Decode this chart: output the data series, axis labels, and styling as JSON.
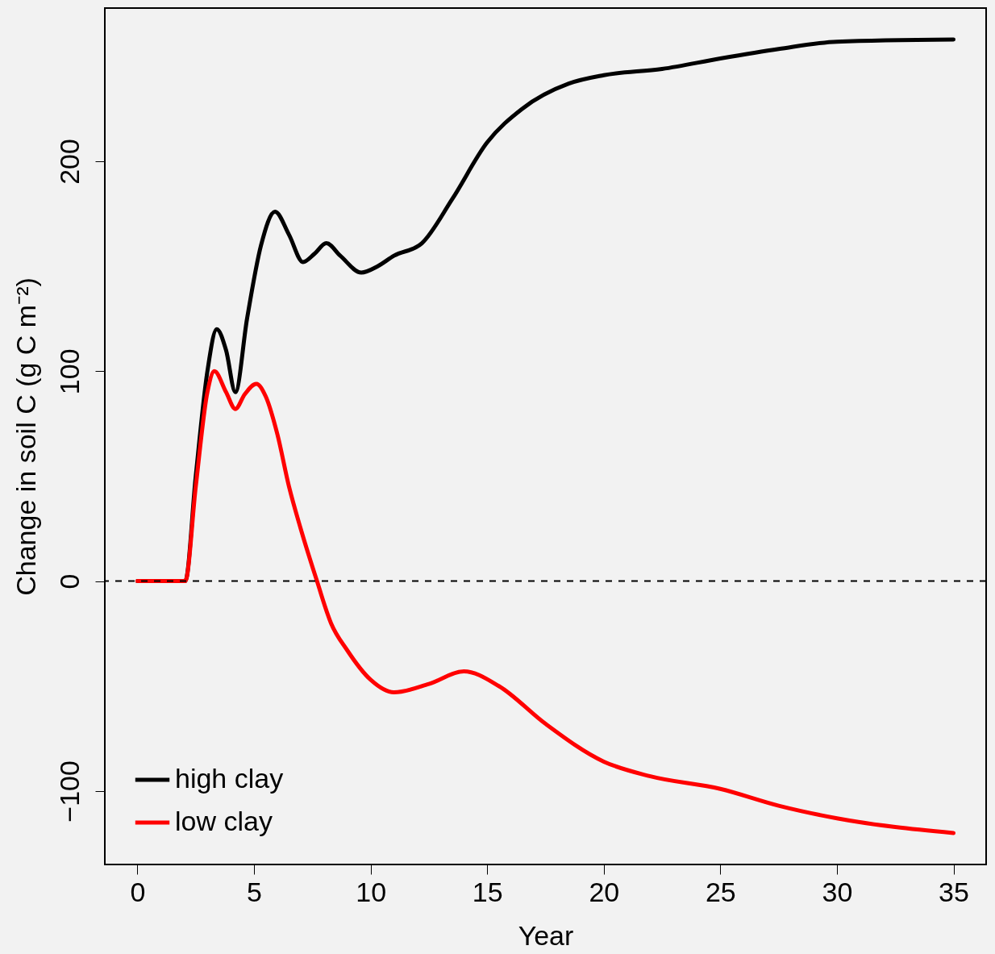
{
  "chart_data": {
    "type": "line",
    "xlabel": "Year",
    "ylabel": "Change in soil C (g C m⁻²)",
    "xlim": [
      -1.4,
      36.4
    ],
    "ylim": [
      -135,
      273
    ],
    "xticks": [
      0,
      5,
      10,
      15,
      20,
      25,
      30,
      35
    ],
    "yticks": [
      -100,
      0,
      100,
      200
    ],
    "grid": false,
    "legend": "bottom left",
    "ref_lines": [
      {
        "axis": "y",
        "value": 0,
        "color": "#000000",
        "line_style": "dashed"
      }
    ],
    "series": [
      {
        "name": "high clay",
        "color": "#000000",
        "line_style": "solid",
        "x": [
          0,
          2.05,
          2.5,
          3,
          3.4,
          3.8,
          4.2,
          4.7,
          5.3,
          5.9,
          6.5,
          7.1,
          7.6,
          8.1,
          8.7,
          9.6,
          10.3,
          11,
          12.2,
          13.5,
          15,
          16.5,
          18.5,
          20,
          22.5,
          25,
          27.5,
          30,
          35
        ],
        "values": [
          0,
          0,
          50,
          100,
          120,
          110,
          90,
          125,
          160,
          176,
          165,
          152,
          156,
          161,
          155,
          147,
          150,
          155,
          161,
          182,
          209,
          225,
          237,
          241,
          244,
          249,
          253.5,
          257,
          258
        ]
      },
      {
        "name": "low clay",
        "color": "#ff0000",
        "line_style": "solid",
        "x": [
          0,
          2.05,
          2.5,
          3,
          3.3,
          3.8,
          4.2,
          4.6,
          5.1,
          5.5,
          6,
          6.5,
          7,
          7.7,
          8.3,
          9,
          10,
          11,
          12.5,
          14,
          15.5,
          17.5,
          20,
          22,
          25,
          27.5,
          30,
          35
        ],
        "values": [
          0,
          0,
          45,
          90,
          100,
          90,
          82,
          89,
          94,
          88,
          70,
          45,
          25,
          0,
          -20,
          -33,
          -47,
          -53,
          -49,
          -43,
          -50,
          -68,
          -86,
          -93,
          -99,
          -107,
          -113,
          -120
        ]
      }
    ]
  }
}
